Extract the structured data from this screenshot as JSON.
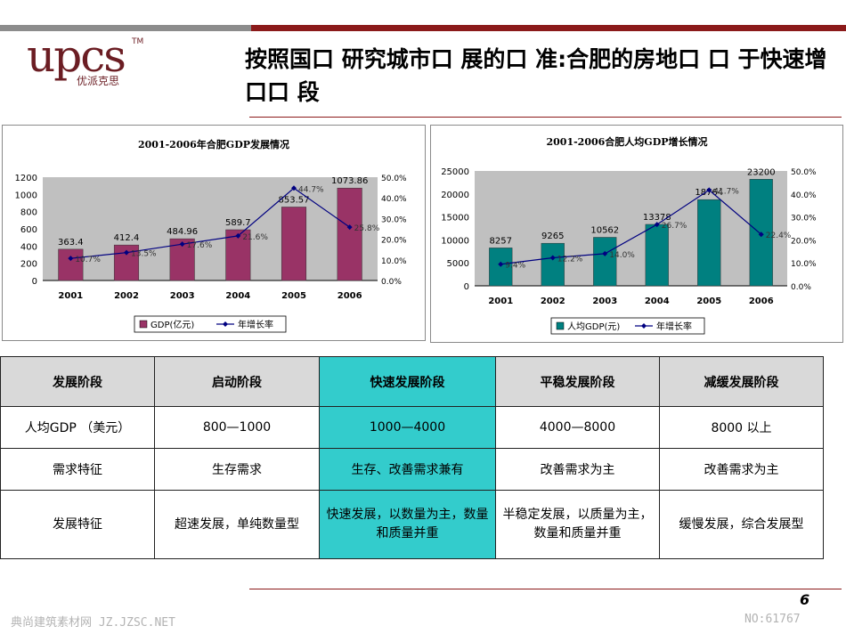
{
  "header": {
    "logo_text": "upcs",
    "logo_tm": "TM",
    "logo_subtitle": "优派克思",
    "title": "按照国口 研究城市口 展的口 准:合肥的房地口 口 于快速增口口 段"
  },
  "chart_data": [
    {
      "type": "bar",
      "title": "2001-2006年合肥GDP发展情况",
      "categories": [
        "2001",
        "2002",
        "2003",
        "2004",
        "2005",
        "2006"
      ],
      "series": [
        {
          "name": "GDP(亿元)",
          "type": "bar",
          "color": "#993366",
          "values": [
            363.4,
            412.4,
            484.96,
            589.7,
            853.57,
            1073.86
          ]
        },
        {
          "name": "年增长率",
          "type": "line",
          "color": "#000080",
          "axis": "right",
          "values": [
            10.7,
            13.5,
            17.6,
            21.6,
            44.7,
            25.8
          ]
        }
      ],
      "data_labels_bar": [
        "363.4",
        "412.4",
        "484.96",
        "589.7",
        "853.57",
        "1073.86"
      ],
      "data_labels_line": [
        "10.7%",
        "13.5%",
        "17.6%",
        "21.6%",
        "44.7%",
        "25.8%"
      ],
      "y_left_ticks": [
        "0",
        "200",
        "400",
        "600",
        "800",
        "1000",
        "1200"
      ],
      "y_right_ticks": [
        "0.0%",
        "10.0%",
        "20.0%",
        "30.0%",
        "40.0%",
        "50.0%"
      ],
      "ylim_left": [
        0,
        1200
      ],
      "ylim_right": [
        0,
        50
      ],
      "legend": [
        "GDP(亿元)",
        "年增长率"
      ],
      "legend_position": "bottom",
      "grid": false
    },
    {
      "type": "bar",
      "title": "2001-2006合肥人均GDP增长情况",
      "categories": [
        "2001",
        "2002",
        "2003",
        "2004",
        "2005",
        "2006"
      ],
      "series": [
        {
          "name": "人均GDP(元)",
          "type": "bar",
          "color": "#008080",
          "values": [
            8257,
            9265,
            10562,
            13378,
            18764,
            23200
          ]
        },
        {
          "name": "年增长率",
          "type": "line",
          "color": "#000080",
          "axis": "right",
          "values": [
            9.4,
            12.2,
            14.0,
            26.7,
            41.7,
            22.4
          ]
        }
      ],
      "data_labels_bar": [
        "8257",
        "9265",
        "10562",
        "13378",
        "18764",
        "23200"
      ],
      "data_labels_line": [
        "9.4%",
        "12.2%",
        "14.0%",
        "26.7%",
        "41.7%",
        "22.4%"
      ],
      "y_left_ticks": [
        "0",
        "5000",
        "10000",
        "15000",
        "20000",
        "25000"
      ],
      "y_right_ticks": [
        "0.0%",
        "10.0%",
        "20.0%",
        "30.0%",
        "40.0%",
        "50.0%"
      ],
      "ylim_left": [
        0,
        25000
      ],
      "ylim_right": [
        0,
        50
      ],
      "legend": [
        "人均GDP(元)",
        "年增长率"
      ],
      "legend_position": "bottom",
      "grid": false
    }
  ],
  "table": {
    "headers": [
      "发展阶段",
      "启动阶段",
      "快速发展阶段",
      "平稳发展阶段",
      "减缓发展阶段"
    ],
    "rows": [
      [
        "人均GDP （美元）",
        "800—1000",
        "1000—4000",
        "4000—8000",
        "8000 以上"
      ],
      [
        "需求特征",
        "生存需求",
        "生存、改善需求兼有",
        "改善需求为主",
        "改善需求为主"
      ],
      [
        "发展特征",
        "超速发展，单纯数量型",
        "快速发展，以数量为主，数量和质量并重",
        "半稳定发展，以质量为主，数量和质量并重",
        "缓慢发展，综合发展型"
      ]
    ],
    "highlight_color": "#33cccc"
  },
  "footer": {
    "page_number": "6",
    "watermark_left": "典尚建筑素材网 JZ.JZSC.NET",
    "watermark_right": "NO:61767"
  }
}
